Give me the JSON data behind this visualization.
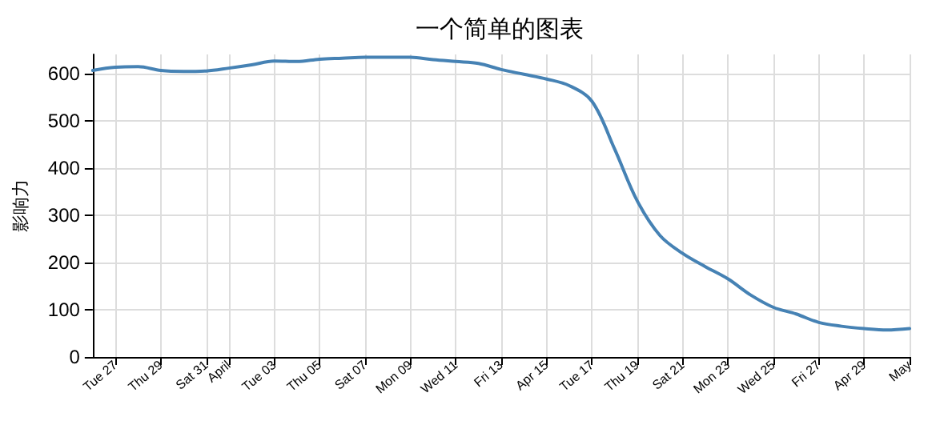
{
  "chart_data": {
    "type": "line",
    "title": "一个简单的图表",
    "ylabel": "影响力",
    "x": [
      "--03-26",
      "--03-27",
      "--03-28",
      "--03-29",
      "--03-30",
      "--03-31",
      "--04-01",
      "--04-02",
      "--04-03",
      "--04-04",
      "--04-05",
      "--04-06",
      "--04-07",
      "--04-08",
      "--04-09",
      "--04-10",
      "--04-11",
      "--04-12",
      "--04-13",
      "--04-14",
      "--04-15",
      "--04-16",
      "--04-17",
      "--04-18",
      "--04-19",
      "--04-20",
      "--04-21",
      "--04-22",
      "--04-23",
      "--04-24",
      "--04-25",
      "--04-26",
      "--04-27",
      "--04-28",
      "--04-29",
      "--04-30",
      "--05-01"
    ],
    "series": [
      {
        "color": "#4682b4",
        "values": [
          606,
          613,
          614,
          606,
          604,
          605,
          611,
          618,
          626,
          625,
          630,
          632,
          634,
          634,
          634,
          629,
          625,
          621,
          608,
          598,
          588,
          574,
          541,
          440,
          330,
          257,
          219,
          191,
          165,
          131,
          105,
          91,
          73,
          65,
          60,
          57,
          60
        ]
      }
    ],
    "xlim": [
      "--03-26",
      "--05-01"
    ],
    "xticks": [
      {
        "value": "--03-27",
        "label": "Tue 27"
      },
      {
        "value": "--03-29",
        "label": "Thu 29"
      },
      {
        "value": "--03-31",
        "label": "Sat 31"
      },
      {
        "value": "--04-01",
        "label": "April"
      },
      {
        "value": "--04-03",
        "label": "Tue 03"
      },
      {
        "value": "--04-05",
        "label": "Thu 05"
      },
      {
        "value": "--04-07",
        "label": "Sat 07"
      },
      {
        "value": "--04-09",
        "label": "Mon 09"
      },
      {
        "value": "--04-11",
        "label": "Wed 11"
      },
      {
        "value": "--04-13",
        "label": "Fri 13"
      },
      {
        "value": "--04-15",
        "label": "Apr 15"
      },
      {
        "value": "--04-17",
        "label": "Tue 17"
      },
      {
        "value": "--04-19",
        "label": "Thu 19"
      },
      {
        "value": "--04-21",
        "label": "Sat 21"
      },
      {
        "value": "--04-23",
        "label": "Mon 23"
      },
      {
        "value": "--04-25",
        "label": "Wed 25"
      },
      {
        "value": "--04-27",
        "label": "Fri 27"
      },
      {
        "value": "--04-29",
        "label": "Apr 29"
      },
      {
        "value": "--05-01",
        "label": "May"
      }
    ],
    "ylim": [
      0,
      640
    ],
    "yticks": [
      0,
      100,
      200,
      300,
      400,
      500,
      600
    ],
    "grid": true,
    "marker": "none",
    "line_style": "solid"
  }
}
